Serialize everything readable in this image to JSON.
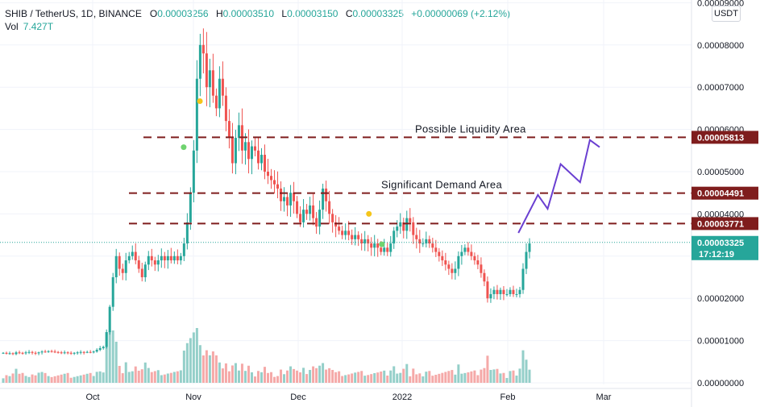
{
  "header": {
    "symbol": "SHIB / TetherUS, 1D, BINANCE",
    "open_label": "O",
    "open": "0.00003256",
    "high_label": "H",
    "high": "0.00003510",
    "low_label": "L",
    "low": "0.00003150",
    "close_label": "C",
    "close": "0.00003325",
    "change": "+0.00000069 (+2.12%)",
    "vol_label": "Vol",
    "vol": "7.427T"
  },
  "currency_button": "USDT",
  "colors": {
    "up": "#26a69a",
    "down": "#ef5350",
    "up_volume": "#94cfc9",
    "down_volume": "#f5a9a8",
    "level_line": "#7f1d1d",
    "level_tag": "#7f1d1d",
    "projection": "#6a3fd1",
    "marker_yellow": "#f5c51a",
    "marker_green": "#6fd36f",
    "price_tag": "#26a69a"
  },
  "chart_data": {
    "type": "candlestick",
    "x_axis": {
      "ticks": [
        "Oct",
        "Nov",
        "Dec",
        "2022",
        "Feb",
        "Mar"
      ]
    },
    "y_axis": {
      "ticks": [
        "0.00000000",
        "0.00001000",
        "0.00002000",
        "0.00003000",
        "0.00004000",
        "0.00005000",
        "0.00006000",
        "0.00007000",
        "0.00008000",
        "0.00009000"
      ],
      "range": [
        0,
        9e-05
      ]
    },
    "price_levels": [
      {
        "value": 5.813e-05,
        "label": "0.00005813",
        "annotation": "Possible Liquidity Area"
      },
      {
        "value": 4.491e-05,
        "label": "0.00004491",
        "annotation": "Significant Demand Area"
      },
      {
        "value": 3.771e-05,
        "label": "0.00003771",
        "annotation": ""
      }
    ],
    "last_price": {
      "value": 3.325e-05,
      "label": "0.00003325",
      "countdown": "17:12:19"
    },
    "projection_path": [
      {
        "date": "2022-02-09",
        "price": 3.55e-05
      },
      {
        "date": "2022-02-15",
        "price": 4.45e-05
      },
      {
        "date": "2022-02-18",
        "price": 4.12e-05
      },
      {
        "date": "2022-02-22",
        "price": 5.18e-05
      },
      {
        "date": "2022-02-28",
        "price": 4.75e-05
      },
      {
        "date": "2022-03-03",
        "price": 5.75e-05
      },
      {
        "date": "2022-03-06",
        "price": 5.58e-05
      }
    ],
    "markers": [
      {
        "date": "2021-10-29",
        "price": 5.58e-05,
        "color": "green"
      },
      {
        "date": "2021-11-03",
        "price": 6.67e-05,
        "color": "yellow"
      },
      {
        "date": "2021-12-25",
        "price": 4e-05,
        "color": "yellow"
      },
      {
        "date": "2021-12-29",
        "price": 3.28e-05,
        "color": "green"
      }
    ],
    "closes": [
      7.1e-06,
      6.9e-06,
      7e-06,
      6.8e-06,
      7.2e-06,
      7.1e-06,
      7e-06,
      7.2e-06,
      7.3e-06,
      7.1e-06,
      7e-06,
      7.2e-06,
      7.4e-06,
      7.3e-06,
      7.5e-06,
      7.4e-06,
      7.3e-06,
      7.2e-06,
      7.1e-06,
      7.2e-06,
      7.1e-06,
      7e-06,
      7.1e-06,
      7.2e-06,
      7.3e-06,
      7.2e-06,
      7.3e-06,
      7.2e-06,
      7.4e-06,
      7.8e-06,
      8.2e-06,
      8.5e-06,
      1.2e-05,
      1.8e-05,
      2.5e-05,
      3e-05,
      2.7e-05,
      2.6e-05,
      2.9e-05,
      3e-05,
      3.1e-05,
      2.9e-05,
      2.7e-05,
      2.5e-05,
      2.8e-05,
      3e-05,
      2.9e-05,
      2.8e-05,
      2.9e-05,
      3e-05,
      2.9e-05,
      3e-05,
      2.9e-05,
      3e-05,
      2.9e-05,
      3e-05,
      3.3e-05,
      3.8e-05,
      4.5e-05,
      5.5e-05,
      7.2e-05,
      8e-05,
      7.8e-05,
      7e-05,
      7.4e-05,
      6.8e-05,
      6.5e-05,
      7.2e-05,
      6.8e-05,
      6.2e-05,
      5.8e-05,
      5.2e-05,
      5.8e-05,
      6.1e-05,
      5.5e-05,
      5.7e-05,
      5.3e-05,
      5.6e-05,
      5.5e-05,
      5.2e-05,
      5.4e-05,
      5e-05,
      4.9e-05,
      4.8e-05,
      4.7e-05,
      4.6e-05,
      4.3e-05,
      4.4e-05,
      4.2e-05,
      4.5e-05,
      4.3e-05,
      4e-05,
      3.8e-05,
      4.1e-05,
      4e-05,
      4.2e-05,
      3.9e-05,
      3.7e-05,
      4.1e-05,
      4.6e-05,
      4.3e-05,
      4e-05,
      3.8e-05,
      3.7e-05,
      3.6e-05,
      3.5e-05,
      3.6e-05,
      3.5e-05,
      3.4e-05,
      3.5e-05,
      3.4e-05,
      3.3e-05,
      3.4e-05,
      3.3e-05,
      3.2e-05,
      3.3e-05,
      3.2e-05,
      3.1e-05,
      3.2e-05,
      3.1e-05,
      3.3e-05,
      3.6e-05,
      3.7e-05,
      3.8e-05,
      3.6e-05,
      3.9e-05,
      3.8e-05,
      3.5e-05,
      3.4e-05,
      3.3e-05,
      3.3e-05,
      3.4e-05,
      3.3e-05,
      3.2e-05,
      3.1e-05,
      3e-05,
      2.9e-05,
      2.8e-05,
      2.7e-05,
      2.6e-05,
      2.7e-05,
      3e-05,
      3.1e-05,
      3.2e-05,
      3.1e-05,
      3e-05,
      2.9e-05,
      2.8e-05,
      2.6e-05,
      2.4e-05,
      2e-05,
      2.1e-05,
      2.2e-05,
      2.1e-05,
      2.2e-05,
      2.1e-05,
      2.1e-05,
      2.2e-05,
      2.1e-05,
      2.1e-05,
      2.2e-05,
      2.7e-05,
      3.1e-05,
      3.3e-05
    ]
  }
}
